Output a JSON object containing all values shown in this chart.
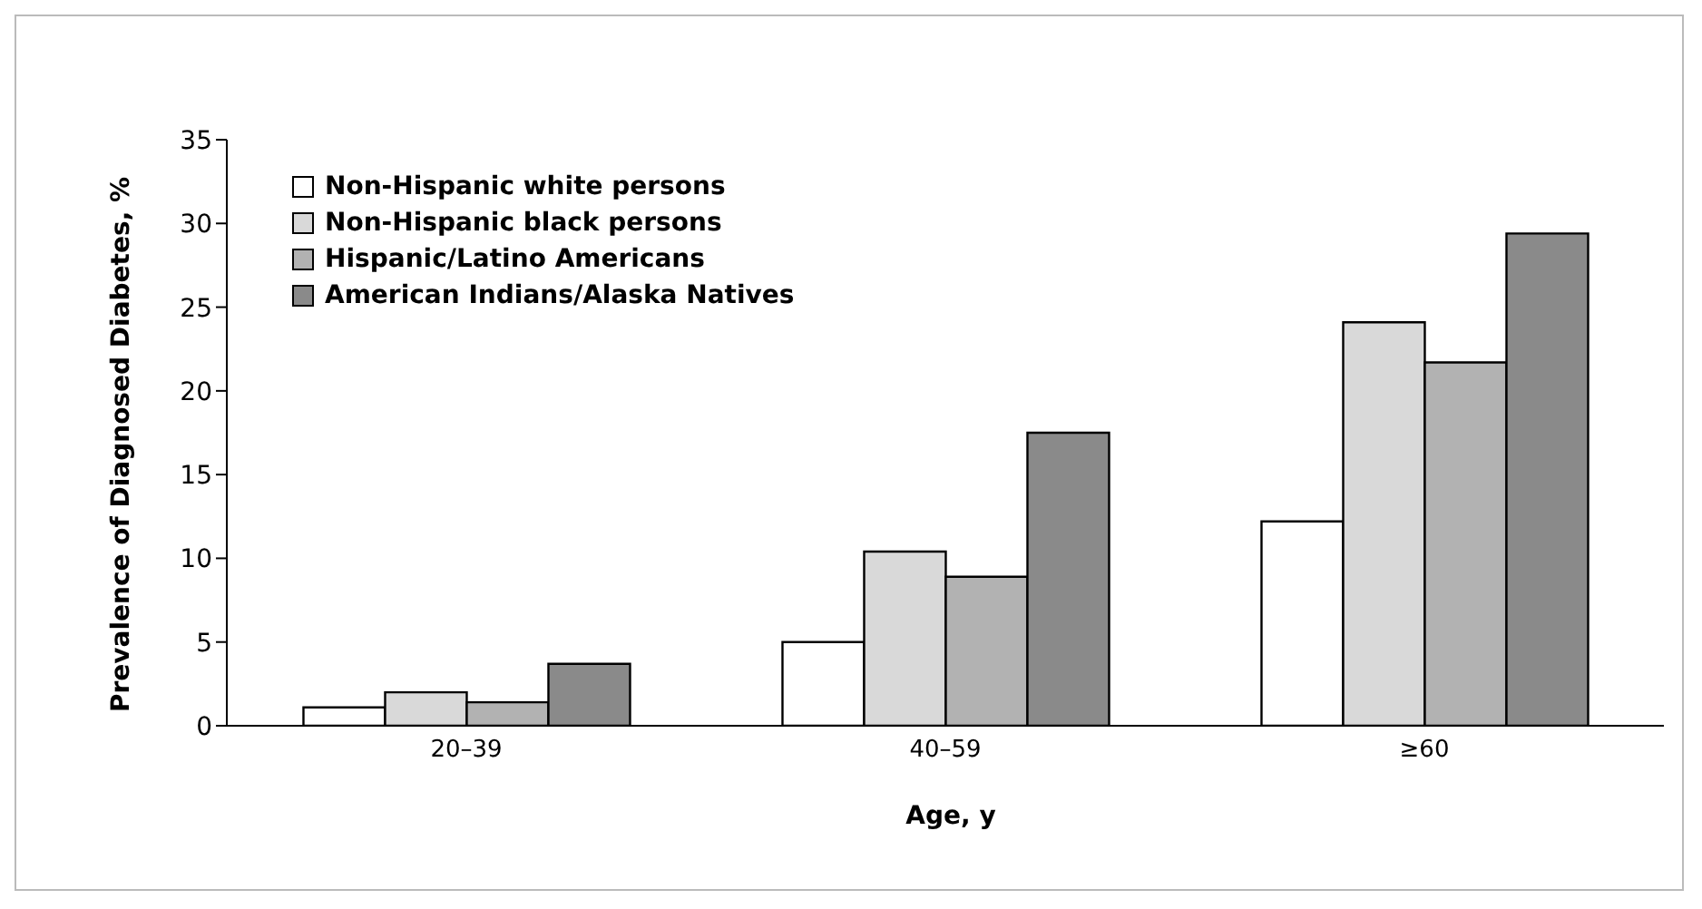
{
  "chart_data": {
    "type": "bar",
    "xlabel": "Age, y",
    "ylabel": "Prevalence of Diagnosed Diabetes, %",
    "categories": [
      "20–39",
      "40–59",
      "≥60"
    ],
    "series": [
      {
        "name": "Non-Hispanic white persons",
        "color": "#ffffff",
        "values": [
          1.1,
          5.0,
          12.2
        ]
      },
      {
        "name": "Non-Hispanic black persons",
        "color": "#d9d9d9",
        "values": [
          2.0,
          10.4,
          24.1
        ]
      },
      {
        "name": "Hispanic/Latino Americans",
        "color": "#b2b2b2",
        "values": [
          1.4,
          8.9,
          21.7
        ]
      },
      {
        "name": "American Indians/Alaska Natives",
        "color": "#8a8a8a",
        "values": [
          3.7,
          17.5,
          29.4
        ]
      }
    ],
    "ylim": [
      0,
      35
    ],
    "yticks": [
      0,
      5,
      10,
      15,
      20,
      25,
      30,
      35
    ],
    "grid": false,
    "legend": "top left"
  }
}
